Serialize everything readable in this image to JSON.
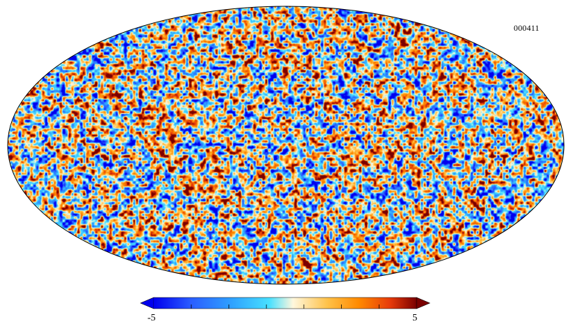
{
  "map": {
    "identifier": "000411",
    "projection": "mollweide",
    "colormap": [
      "#0000ee",
      "#2a5cff",
      "#2fa3ff",
      "#48e0ff",
      "#fff7dd",
      "#ffc24a",
      "#ff8a00",
      "#e63a0a",
      "#7a0000"
    ]
  },
  "colorbar": {
    "min_label": "-5",
    "max_label": "5",
    "range": [
      -5,
      5
    ],
    "extend": "both"
  }
}
